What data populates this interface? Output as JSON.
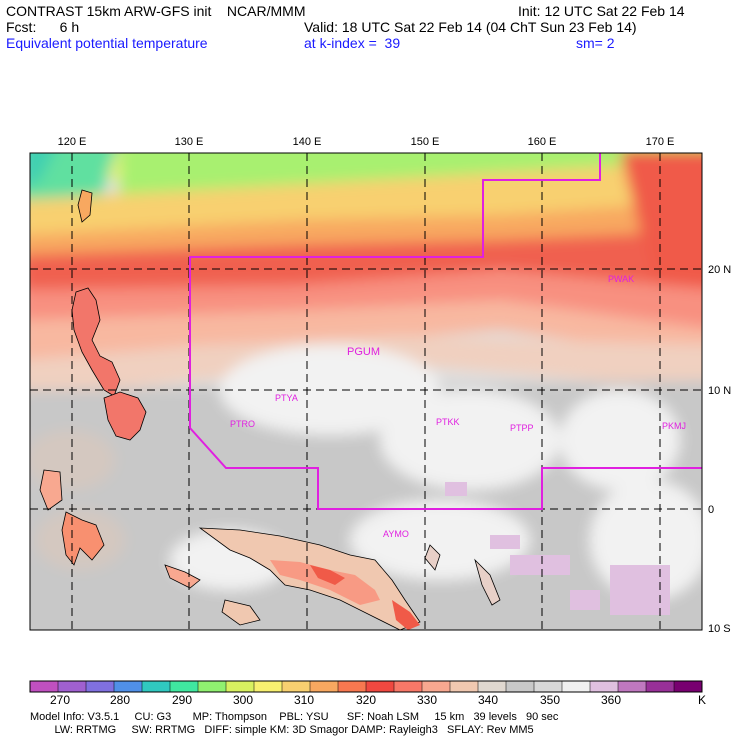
{
  "header": {
    "title_left": "CONTRAST 15km ARW-GFS init    NCAR/MMM",
    "fcst": "Fcst:      6 h",
    "field": "Equivalent potential temperature",
    "init": "Init: 12 UTC Sat 22 Feb 14",
    "valid": "Valid: 18 UTC Sat 22 Feb 14 (04 ChT Sun 23 Feb 14)",
    "level": "at k-index =  39",
    "smooth": "sm= 2"
  },
  "map": {
    "lon_labels": [
      "120 E",
      "130 E",
      "140 E",
      "150 E",
      "160 E",
      "170 E"
    ],
    "lat_labels": [
      "20 N",
      "10 N",
      "0",
      "10 S"
    ],
    "stations": [
      "PWAK",
      "PGUM",
      "PTYA",
      "PTRO",
      "PTKK",
      "PTPP",
      "PKMJ",
      "AYMO"
    ]
  },
  "colorbar": {
    "labels": [
      "270",
      "280",
      "290",
      "300",
      "310",
      "320",
      "330",
      "340",
      "350",
      "360"
    ],
    "unit": "K",
    "colors": [
      "#c050c0",
      "#a060d0",
      "#8070e0",
      "#5090e8",
      "#30c8c0",
      "#40e8a0",
      "#90f070",
      "#d8f060",
      "#f8f070",
      "#f8d070",
      "#f8a860",
      "#f87850",
      "#f04840",
      "#f87868",
      "#f8a890",
      "#f0c8b0",
      "#e0d8d0",
      "#c8c8c8",
      "#d8d8d8",
      "#f0f0f0",
      "#e0c0e0",
      "#c078c0",
      "#983098",
      "#780070"
    ]
  },
  "model_info": {
    "line1": "Model Info: V3.5.1     CU: G3       MP: Thompson    PBL: YSU      SF: Noah LSM     15 km   39 levels   90 sec",
    "line2": "        LW: RRTMG     SW: RRTMG   DIFF: simple KM: 3D Smagor DAMP: Rayleigh3   SFLAY: Rev MM5"
  },
  "colors": {
    "boundary": "#e020e0",
    "station_text": "#e020e0"
  }
}
